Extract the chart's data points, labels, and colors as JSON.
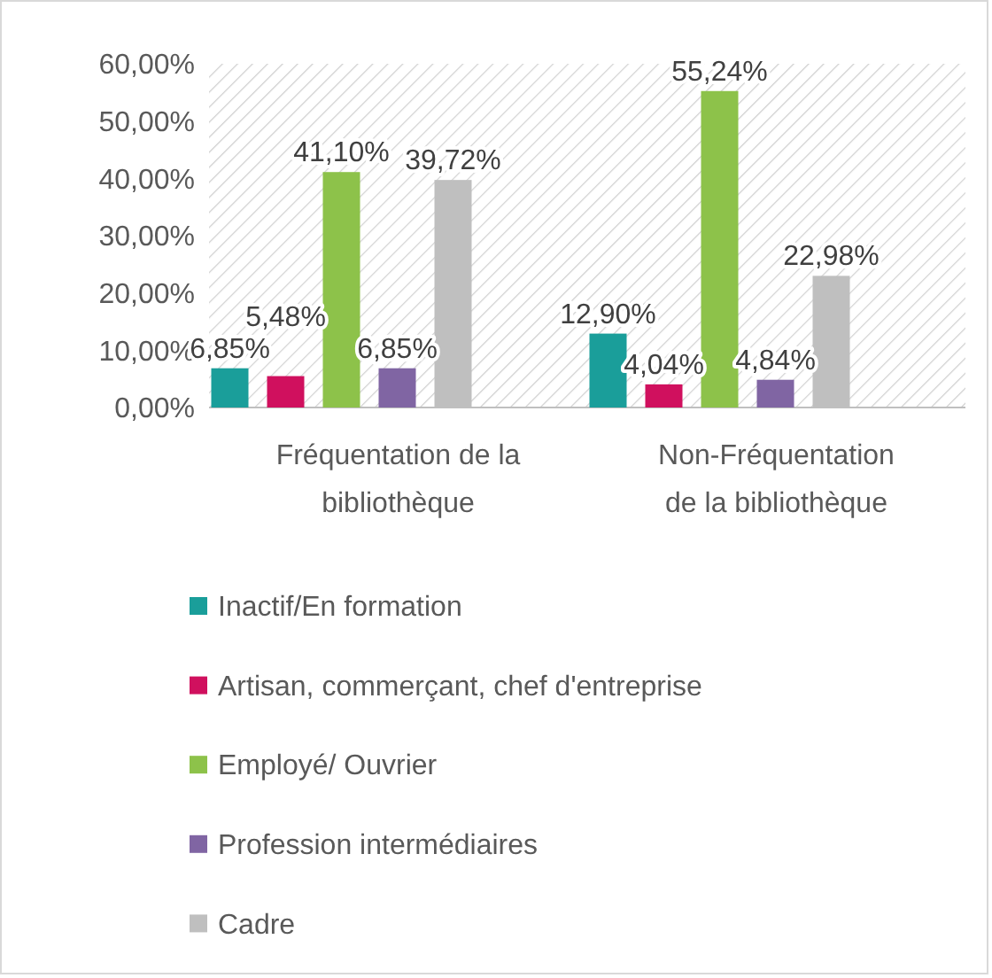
{
  "chart_data": {
    "type": "bar",
    "categories": [
      "Fréquentation de la bibliothèque",
      "Non-Fréquentation de la bibliothèque"
    ],
    "series": [
      {
        "name": "Inactif/En formation",
        "color": "#1a9e9a",
        "values": [
          6.85,
          12.9
        ],
        "value_labels": [
          "6,85%",
          "12,90%"
        ]
      },
      {
        "name": "Artisan, commerçant, chef d'entreprise",
        "color": "#d0105e",
        "values": [
          5.48,
          4.04
        ],
        "value_labels": [
          "5,48%",
          "4,04%"
        ]
      },
      {
        "name": "Employé/ Ouvrier",
        "color": "#8dc24a",
        "values": [
          41.1,
          55.24
        ],
        "value_labels": [
          "41,10%",
          "55,24%"
        ]
      },
      {
        "name": "Profession intermédiaires",
        "color": "#8065a3",
        "values": [
          6.85,
          4.84
        ],
        "value_labels": [
          "6,85%",
          "4,84%"
        ]
      },
      {
        "name": "Cadre",
        "color": "#bfbfbf",
        "values": [
          39.72,
          22.98
        ],
        "value_labels": [
          "39,72%",
          "22,98%"
        ]
      }
    ],
    "ylim": [
      0,
      60
    ],
    "yticks": [
      {
        "value": 0,
        "label": "0,00%"
      },
      {
        "value": 10,
        "label": "10,00%"
      },
      {
        "value": 20,
        "label": "20,00%"
      },
      {
        "value": 30,
        "label": "30,00%"
      },
      {
        "value": 40,
        "label": "40,00%"
      },
      {
        "value": 50,
        "label": "50,00%"
      },
      {
        "value": 60,
        "label": "60,00%"
      }
    ],
    "legend": "bottom",
    "grid": false
  }
}
